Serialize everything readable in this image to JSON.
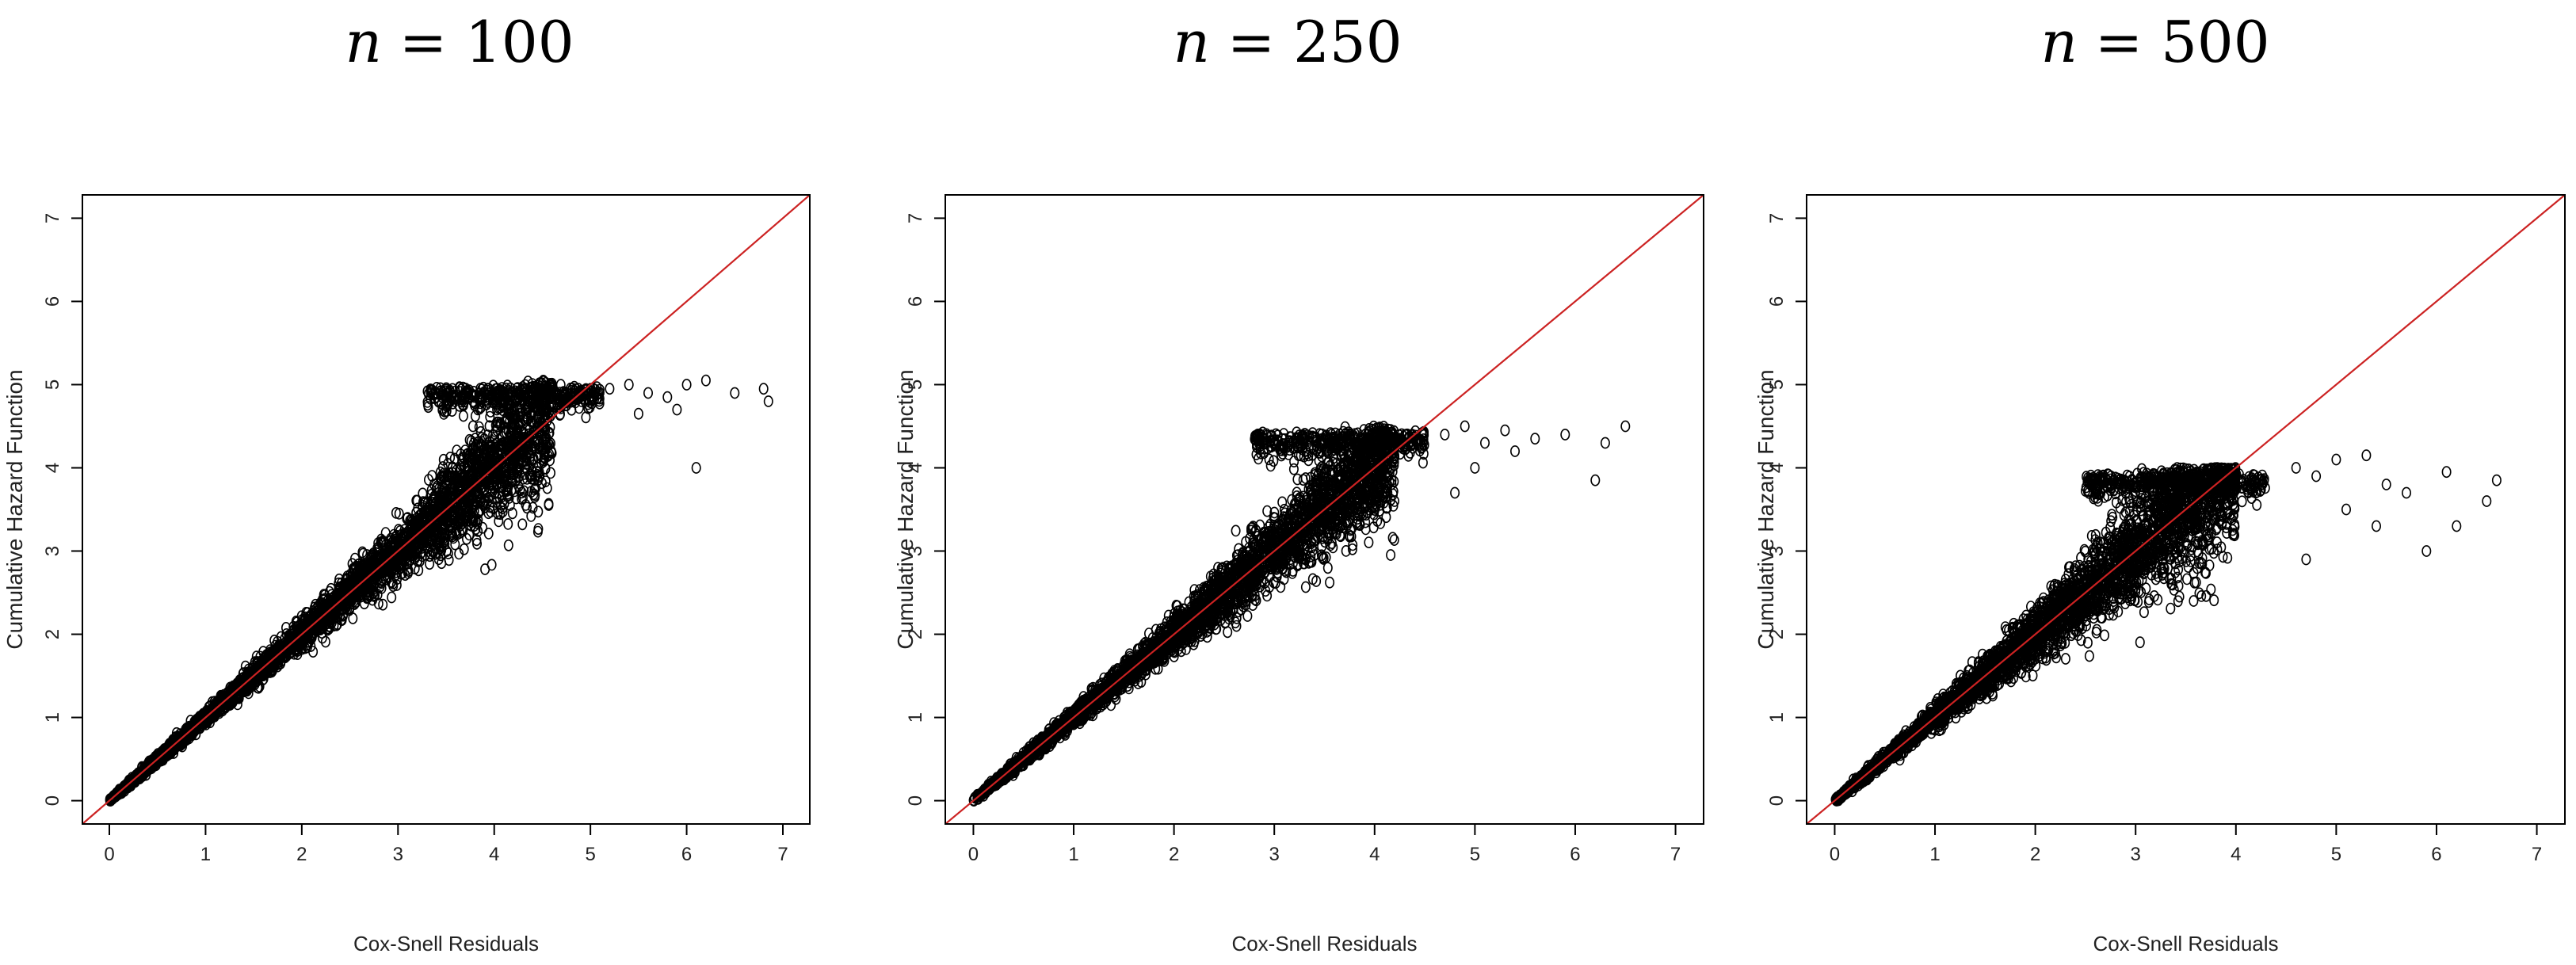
{
  "chart_data": [
    {
      "type": "scatter",
      "title_var": "n",
      "title_rest": "= 100",
      "xlabel": "Cox-Snell Residuals",
      "ylabel": "Cumulative Hazard Function",
      "xlim": [
        0,
        7
      ],
      "ylim": [
        0,
        7
      ],
      "xticks": [
        "0",
        "1",
        "2",
        "3",
        "4",
        "5",
        "6",
        "7"
      ],
      "yticks": [
        "0",
        "1",
        "2",
        "3",
        "4",
        "5",
        "6",
        "7"
      ],
      "reference_line": {
        "intercept": 0,
        "slope": 1,
        "color": "#cc2222"
      },
      "point_color": "#000000",
      "dense_band": {
        "x_end": 4.6,
        "spread_at_x": [
          [
            0,
            0.02
          ],
          [
            1,
            0.08
          ],
          [
            2,
            0.16
          ],
          [
            3,
            0.3
          ],
          [
            4,
            0.6
          ],
          [
            4.6,
            0.75
          ]
        ]
      },
      "plateau": {
        "x_start": 3.3,
        "x_end": 5.1,
        "y": 4.95
      },
      "sample_points": [
        [
          5.2,
          4.95
        ],
        [
          5.4,
          5.0
        ],
        [
          5.6,
          4.9
        ],
        [
          5.8,
          4.85
        ],
        [
          6.0,
          5.0
        ],
        [
          6.2,
          5.05
        ],
        [
          6.5,
          4.9
        ],
        [
          6.8,
          4.95
        ],
        [
          6.85,
          4.8
        ],
        [
          6.1,
          4.0
        ],
        [
          5.5,
          4.65
        ],
        [
          5.9,
          4.7
        ]
      ]
    },
    {
      "type": "scatter",
      "title_var": "n",
      "title_rest": "= 250",
      "xlabel": "Cox-Snell Residuals",
      "ylabel": "Cumulative Hazard Function",
      "xlim": [
        0,
        7
      ],
      "ylim": [
        0,
        7
      ],
      "xticks": [
        "0",
        "1",
        "2",
        "3",
        "4",
        "5",
        "6",
        "7"
      ],
      "yticks": [
        "0",
        "1",
        "2",
        "3",
        "4",
        "5",
        "6",
        "7"
      ],
      "reference_line": {
        "intercept": 0,
        "slope": 1,
        "color": "#cc2222"
      },
      "point_color": "#000000",
      "dense_band": {
        "x_end": 4.2,
        "spread_at_x": [
          [
            0,
            0.02
          ],
          [
            1,
            0.1
          ],
          [
            2,
            0.2
          ],
          [
            3,
            0.4
          ],
          [
            4,
            0.6
          ],
          [
            4.2,
            0.7
          ]
        ]
      },
      "plateau": {
        "x_start": 2.8,
        "x_end": 4.5,
        "y": 4.4
      },
      "sample_points": [
        [
          4.7,
          4.4
        ],
        [
          4.9,
          4.5
        ],
        [
          5.1,
          4.3
        ],
        [
          5.3,
          4.45
        ],
        [
          5.6,
          4.35
        ],
        [
          5.9,
          4.4
        ],
        [
          6.3,
          4.3
        ],
        [
          6.5,
          4.5
        ],
        [
          6.2,
          3.85
        ],
        [
          5.0,
          4.0
        ],
        [
          4.8,
          3.7
        ],
        [
          5.4,
          4.2
        ]
      ]
    },
    {
      "type": "scatter",
      "title_var": "n",
      "title_rest": "= 500",
      "xlabel": "Cox-Snell Residuals",
      "ylabel": "Cumulative Hazard Function",
      "xlim": [
        0,
        7
      ],
      "ylim": [
        0,
        7
      ],
      "xticks": [
        "0",
        "1",
        "2",
        "3",
        "4",
        "5",
        "6",
        "7"
      ],
      "yticks": [
        "0",
        "1",
        "2",
        "3",
        "4",
        "5",
        "6",
        "7"
      ],
      "reference_line": {
        "intercept": 0,
        "slope": 1,
        "color": "#cc2222"
      },
      "point_color": "#000000",
      "dense_band": {
        "x_end": 4.0,
        "spread_at_x": [
          [
            0,
            0.02
          ],
          [
            1,
            0.12
          ],
          [
            2,
            0.3
          ],
          [
            3,
            0.55
          ],
          [
            3.5,
            0.7
          ],
          [
            4.0,
            0.8
          ]
        ]
      },
      "plateau": {
        "x_start": 2.5,
        "x_end": 4.3,
        "y": 3.9
      },
      "sample_points": [
        [
          4.6,
          4.0
        ],
        [
          4.8,
          3.9
        ],
        [
          5.0,
          4.1
        ],
        [
          5.3,
          4.15
        ],
        [
          5.5,
          3.8
        ],
        [
          5.7,
          3.7
        ],
        [
          5.9,
          3.0
        ],
        [
          6.1,
          3.95
        ],
        [
          6.2,
          3.3
        ],
        [
          6.5,
          3.6
        ],
        [
          6.6,
          3.85
        ],
        [
          5.4,
          3.3
        ],
        [
          5.1,
          3.5
        ],
        [
          4.7,
          2.9
        ]
      ]
    }
  ]
}
